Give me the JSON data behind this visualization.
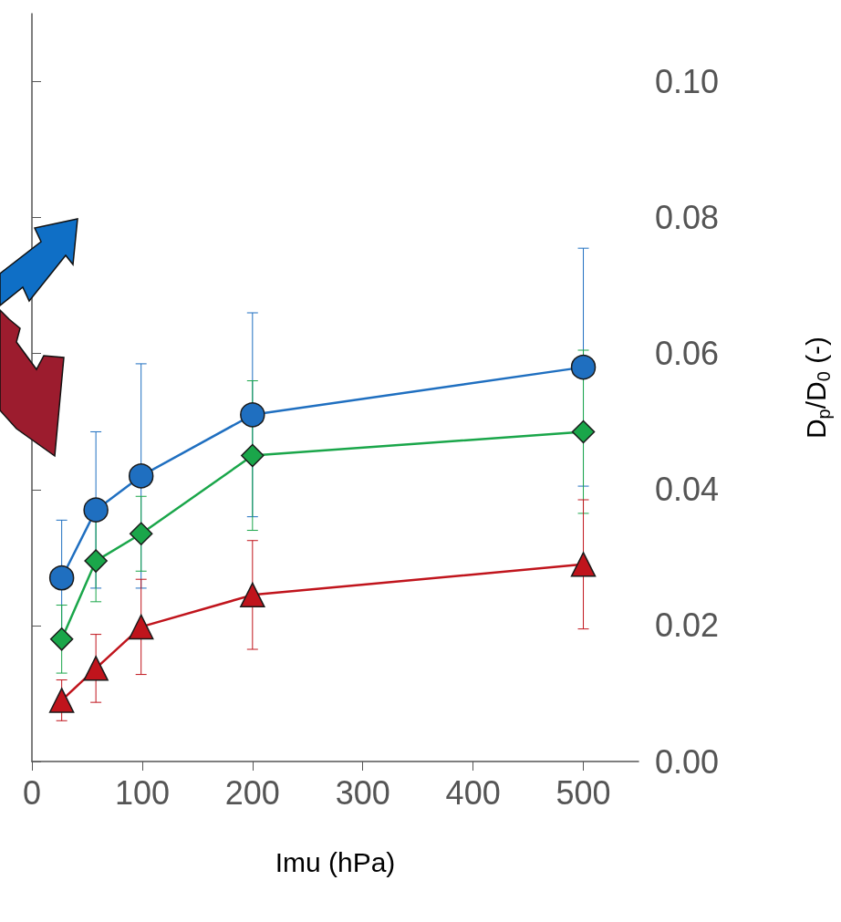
{
  "chart_data": {
    "type": "line",
    "xlabel": "Imu (hPa)",
    "ylabel": "D$_{p}$/D$_{0}$ (-)",
    "x": [
      27,
      58,
      99,
      200,
      500
    ],
    "series": [
      {
        "color": "#1f6fc0",
        "marker": "circle",
        "values": [
          0.027,
          0.037,
          0.042,
          0.051,
          0.058
        ],
        "errors": [
          0.0085,
          0.0115,
          0.0165,
          0.015,
          0.0175
        ]
      },
      {
        "color": "#1aa64a",
        "marker": "diamond",
        "values": [
          0.018,
          0.0295,
          0.0335,
          0.045,
          0.0485
        ],
        "errors": [
          0.005,
          0.006,
          0.0055,
          0.011,
          0.012
        ]
      },
      {
        "color": "#c0141c",
        "marker": "triangle",
        "values": [
          0.009,
          0.0137,
          0.0198,
          0.0245,
          0.029
        ],
        "errors": [
          0.003,
          0.005,
          0.007,
          0.008,
          0.0095
        ]
      }
    ],
    "xlim": [
      0,
      550
    ],
    "xticks": [
      0,
      100,
      200,
      300,
      400,
      500
    ],
    "ylim": [
      0,
      0.11
    ],
    "yticks": [
      {
        "value": 0,
        "label": "0.00"
      },
      {
        "value": 0.02,
        "label": "0.02"
      },
      {
        "value": 0.04,
        "label": "0.04"
      },
      {
        "value": 0.06,
        "label": "0.06"
      },
      {
        "value": 0.08,
        "label": "0.08"
      },
      {
        "value": 0.1,
        "label": "0.10"
      }
    ],
    "grid": false
  }
}
